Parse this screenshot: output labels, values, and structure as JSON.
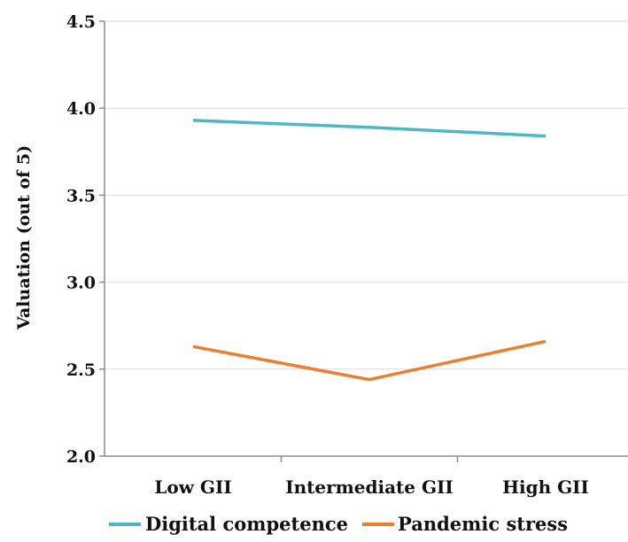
{
  "chart_data": {
    "type": "line",
    "title": "",
    "xlabel": "",
    "ylabel": "Valuation (out of 5)",
    "categories": [
      "Low GII",
      "Intermediate GII",
      "High GII"
    ],
    "ylim": [
      2.0,
      4.5
    ],
    "yticks": [
      "2.0",
      "2.5",
      "3.0",
      "3.5",
      "4.0",
      "4.5"
    ],
    "grid": true,
    "legend_position": "bottom",
    "series": [
      {
        "name": "Digital competence",
        "values": [
          3.93,
          3.89,
          3.84
        ],
        "color": "#4bb8c4"
      },
      {
        "name": "Pandemic stress",
        "values": [
          2.63,
          2.44,
          2.66
        ],
        "color": "#ed7d31"
      }
    ]
  }
}
